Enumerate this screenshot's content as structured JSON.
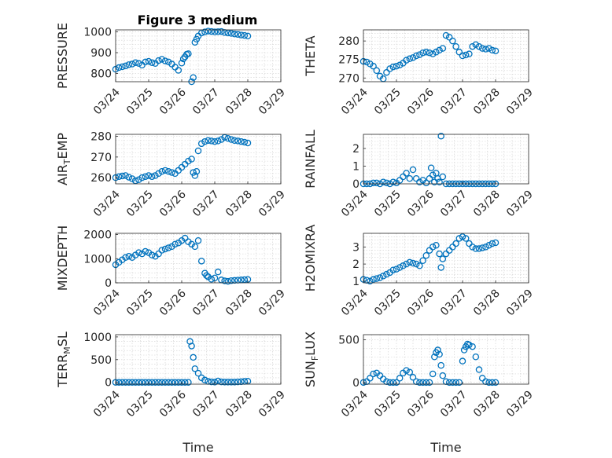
{
  "figure": {
    "title": "Figure 3 medium"
  },
  "chart_data": [
    {
      "type": "scatter",
      "ylabel": "PRESSURE",
      "ylim": [
        760,
        1010
      ],
      "yticks": [
        800,
        900,
        1000
      ],
      "xlim": [
        0,
        5
      ],
      "xticks": [
        0,
        1,
        2,
        3,
        4,
        5
      ],
      "xticklabels": [
        "03/24",
        "03/25",
        "03/26",
        "03/27",
        "03/28",
        "03/29"
      ],
      "x": [
        0,
        0.1,
        0.2,
        0.3,
        0.4,
        0.5,
        0.6,
        0.7,
        0.8,
        0.9,
        1.0,
        1.1,
        1.2,
        1.3,
        1.4,
        1.5,
        1.6,
        1.7,
        1.8,
        1.9,
        2.0,
        2.05,
        2.1,
        2.15,
        2.2,
        2.3,
        2.35,
        2.4,
        2.45,
        2.5,
        2.6,
        2.7,
        2.8,
        2.9,
        3.0,
        3.1,
        3.2,
        3.3,
        3.4,
        3.5,
        3.6,
        3.7,
        3.8,
        3.9,
        4.0
      ],
      "y": [
        820,
        828,
        832,
        836,
        842,
        845,
        852,
        848,
        840,
        855,
        858,
        852,
        848,
        862,
        868,
        860,
        855,
        845,
        830,
        815,
        850,
        870,
        880,
        892,
        895,
        760,
        780,
        950,
        965,
        980,
        995,
        1000,
        1004,
        1002,
        1000,
        1001,
        1002,
        997,
        995,
        993,
        990,
        988,
        985,
        983,
        980
      ]
    },
    {
      "type": "scatter",
      "ylabel": "THETA",
      "ylim": [
        269,
        283
      ],
      "yticks": [
        270,
        275,
        280
      ],
      "xlim": [
        0,
        5
      ],
      "xticks": [
        0,
        1,
        2,
        3,
        4,
        5
      ],
      "xticklabels": [
        "03/24",
        "03/25",
        "03/26",
        "03/27",
        "03/28",
        "03/29"
      ],
      "x": [
        0,
        0.1,
        0.2,
        0.3,
        0.4,
        0.5,
        0.6,
        0.7,
        0.8,
        0.9,
        1.0,
        1.1,
        1.2,
        1.3,
        1.4,
        1.5,
        1.6,
        1.7,
        1.8,
        1.9,
        2.0,
        2.1,
        2.2,
        2.3,
        2.4,
        2.5,
        2.6,
        2.7,
        2.8,
        2.9,
        3.0,
        3.1,
        3.2,
        3.3,
        3.4,
        3.5,
        3.6,
        3.7,
        3.8,
        3.9,
        4.0
      ],
      "y": [
        274.5,
        274.3,
        273.8,
        273.2,
        272.0,
        270.5,
        269.8,
        271.5,
        272.5,
        273.0,
        273.2,
        273.5,
        274.0,
        274.8,
        275.2,
        275.5,
        276.0,
        276.3,
        276.8,
        277.0,
        276.8,
        276.5,
        277.0,
        277.5,
        278.0,
        281.5,
        281.0,
        280.0,
        278.5,
        277.0,
        276.0,
        276.2,
        276.5,
        278.5,
        279.0,
        278.5,
        278.0,
        277.8,
        278.0,
        277.5,
        277.3
      ]
    },
    {
      "type": "scatter",
      "ylabel": "AIR_TEMP",
      "ylim": [
        257,
        281
      ],
      "yticks": [
        260,
        270,
        280
      ],
      "xlim": [
        0,
        5
      ],
      "xticks": [
        0,
        1,
        2,
        3,
        4,
        5
      ],
      "xticklabels": [
        "03/24",
        "03/25",
        "03/26",
        "03/27",
        "03/28",
        "03/29"
      ],
      "x": [
        0,
        0.1,
        0.2,
        0.3,
        0.4,
        0.5,
        0.6,
        0.7,
        0.8,
        0.9,
        1.0,
        1.1,
        1.2,
        1.3,
        1.4,
        1.5,
        1.6,
        1.7,
        1.8,
        1.9,
        2.0,
        2.1,
        2.2,
        2.3,
        2.35,
        2.4,
        2.45,
        2.5,
        2.6,
        2.7,
        2.8,
        2.9,
        3.0,
        3.1,
        3.2,
        3.3,
        3.4,
        3.5,
        3.6,
        3.7,
        3.8,
        3.9,
        4.0
      ],
      "y": [
        260.0,
        260.5,
        260.8,
        261.0,
        260.2,
        259.5,
        258.5,
        259.0,
        260.0,
        260.5,
        261.0,
        260.5,
        261.0,
        262.0,
        263.0,
        263.5,
        263.0,
        262.5,
        262.0,
        263.5,
        265.0,
        266.5,
        268.0,
        269.0,
        262.5,
        261.0,
        263.0,
        273.0,
        276.5,
        277.5,
        278.0,
        277.8,
        277.5,
        277.8,
        278.5,
        279.5,
        279.0,
        278.5,
        278.0,
        277.8,
        277.5,
        277.2,
        276.8
      ]
    },
    {
      "type": "scatter",
      "ylabel": "RAINFALL",
      "ylim": [
        0,
        2.8
      ],
      "yticks": [
        0,
        1,
        2
      ],
      "xlim": [
        0,
        5
      ],
      "xticks": [
        0,
        1,
        2,
        3,
        4,
        5
      ],
      "xticklabels": [
        "03/24",
        "03/25",
        "03/26",
        "03/27",
        "03/28",
        "03/29"
      ],
      "x": [
        0,
        0.1,
        0.2,
        0.3,
        0.4,
        0.5,
        0.6,
        0.7,
        0.8,
        0.9,
        1.0,
        1.1,
        1.2,
        1.3,
        1.4,
        1.5,
        1.6,
        1.7,
        1.8,
        1.9,
        2.0,
        2.05,
        2.1,
        2.15,
        2.2,
        2.25,
        2.3,
        2.35,
        2.4,
        2.5,
        2.6,
        2.7,
        2.8,
        2.9,
        3.0,
        3.1,
        3.2,
        3.3,
        3.4,
        3.5,
        3.6,
        3.7,
        3.8,
        3.9,
        4.0
      ],
      "y": [
        0,
        0,
        0,
        0.05,
        0.05,
        0,
        0.1,
        0.05,
        0,
        0.1,
        0.05,
        0.2,
        0.4,
        0.6,
        0.3,
        0.8,
        0.3,
        0.1,
        0.2,
        0.05,
        0.3,
        0.9,
        0.5,
        0.1,
        0.6,
        0.3,
        0.1,
        2.7,
        0.4,
        0,
        0,
        0,
        0,
        0,
        0,
        0,
        0,
        0,
        0,
        0,
        0,
        0,
        0,
        0,
        0
      ]
    },
    {
      "type": "scatter",
      "ylabel": "MIXDEPTH",
      "ylim": [
        0,
        2050
      ],
      "yticks": [
        0,
        1000,
        2000
      ],
      "xlim": [
        0,
        5
      ],
      "xticks": [
        0,
        1,
        2,
        3,
        4,
        5
      ],
      "xticklabels": [
        "03/24",
        "03/25",
        "03/26",
        "03/27",
        "03/28",
        "03/29"
      ],
      "x": [
        0,
        0.1,
        0.2,
        0.3,
        0.4,
        0.5,
        0.6,
        0.7,
        0.8,
        0.9,
        1.0,
        1.1,
        1.2,
        1.3,
        1.4,
        1.5,
        1.6,
        1.7,
        1.8,
        1.9,
        2.0,
        2.1,
        2.2,
        2.3,
        2.4,
        2.5,
        2.6,
        2.7,
        2.75,
        2.8,
        2.9,
        3.0,
        3.1,
        3.2,
        3.3,
        3.4,
        3.5,
        3.6,
        3.7,
        3.8,
        3.9,
        4.0
      ],
      "y": [
        750,
        850,
        950,
        1050,
        1100,
        1050,
        1150,
        1250,
        1200,
        1300,
        1250,
        1150,
        1100,
        1200,
        1350,
        1400,
        1450,
        1500,
        1600,
        1650,
        1750,
        1850,
        1700,
        1600,
        1500,
        1750,
        900,
        400,
        300,
        250,
        150,
        200,
        450,
        120,
        80,
        60,
        90,
        100,
        110,
        120,
        130,
        140
      ]
    },
    {
      "type": "scatter",
      "ylabel": "H2OMIXRA",
      "ylim": [
        0.9,
        3.8
      ],
      "yticks": [
        1,
        2,
        3
      ],
      "xlim": [
        0,
        5
      ],
      "xticks": [
        0,
        1,
        2,
        3,
        4,
        5
      ],
      "xticklabels": [
        "03/24",
        "03/25",
        "03/26",
        "03/27",
        "03/28",
        "03/29"
      ],
      "x": [
        0,
        0.1,
        0.2,
        0.3,
        0.4,
        0.5,
        0.6,
        0.7,
        0.8,
        0.9,
        1.0,
        1.1,
        1.2,
        1.3,
        1.4,
        1.5,
        1.6,
        1.7,
        1.8,
        1.9,
        2.0,
        2.1,
        2.2,
        2.3,
        2.35,
        2.4,
        2.5,
        2.6,
        2.7,
        2.8,
        2.9,
        3.0,
        3.1,
        3.2,
        3.3,
        3.4,
        3.5,
        3.6,
        3.7,
        3.8,
        3.9,
        4.0
      ],
      "y": [
        1.1,
        1.05,
        1.0,
        1.1,
        1.15,
        1.2,
        1.3,
        1.4,
        1.5,
        1.65,
        1.7,
        1.8,
        1.9,
        2.0,
        2.1,
        2.05,
        2.0,
        1.9,
        2.2,
        2.5,
        2.8,
        3.0,
        3.1,
        2.6,
        1.8,
        2.3,
        2.6,
        2.8,
        3.0,
        3.2,
        3.5,
        3.6,
        3.5,
        3.2,
        3.0,
        2.9,
        2.9,
        2.95,
        3.0,
        3.1,
        3.2,
        3.25
      ]
    },
    {
      "type": "scatter",
      "ylabel": "TERR_MSL",
      "ylim": [
        -40,
        1050
      ],
      "yticks": [
        0,
        500,
        1000
      ],
      "xlim": [
        0,
        5
      ],
      "xticks": [
        0,
        1,
        2,
        3,
        4,
        5
      ],
      "xticklabels": [
        "03/24",
        "03/25",
        "03/26",
        "03/27",
        "03/28",
        "03/29"
      ],
      "x": [
        0,
        0.1,
        0.2,
        0.3,
        0.4,
        0.5,
        0.6,
        0.7,
        0.8,
        0.9,
        1.0,
        1.1,
        1.2,
        1.3,
        1.4,
        1.5,
        1.6,
        1.7,
        1.8,
        1.9,
        2.0,
        2.1,
        2.2,
        2.25,
        2.3,
        2.35,
        2.4,
        2.5,
        2.6,
        2.7,
        2.8,
        2.9,
        3.0,
        3.1,
        3.2,
        3.3,
        3.4,
        3.5,
        3.6,
        3.7,
        3.8,
        3.9,
        4.0
      ],
      "y": [
        0,
        0,
        0,
        0,
        0,
        0,
        0,
        0,
        0,
        0,
        0,
        0,
        0,
        0,
        0,
        0,
        0,
        0,
        0,
        0,
        0,
        0,
        0,
        900,
        800,
        550,
        300,
        200,
        100,
        50,
        20,
        10,
        5,
        30,
        10,
        5,
        5,
        5,
        5,
        10,
        15,
        20,
        25
      ]
    },
    {
      "type": "scatter",
      "ylabel": "SUN_FLUX",
      "ylim": [
        -20,
        560
      ],
      "yticks": [
        0,
        500
      ],
      "xlim": [
        0,
        5
      ],
      "xticks": [
        0,
        1,
        2,
        3,
        4,
        5
      ],
      "xticklabels": [
        "03/24",
        "03/25",
        "03/26",
        "03/27",
        "03/28",
        "03/29"
      ],
      "x": [
        0,
        0.1,
        0.2,
        0.3,
        0.4,
        0.5,
        0.6,
        0.7,
        0.8,
        0.9,
        1.0,
        1.1,
        1.2,
        1.3,
        1.4,
        1.5,
        1.6,
        1.7,
        1.8,
        1.9,
        2.0,
        2.1,
        2.15,
        2.2,
        2.25,
        2.3,
        2.35,
        2.4,
        2.5,
        2.6,
        2.7,
        2.8,
        2.9,
        3.0,
        3.05,
        3.1,
        3.15,
        3.2,
        3.3,
        3.4,
        3.5,
        3.6,
        3.7,
        3.8,
        3.9,
        4.0
      ],
      "y": [
        0,
        10,
        50,
        100,
        110,
        80,
        40,
        10,
        0,
        0,
        0,
        50,
        110,
        140,
        120,
        60,
        10,
        0,
        0,
        0,
        0,
        100,
        300,
        350,
        380,
        330,
        200,
        80,
        10,
        0,
        0,
        0,
        0,
        250,
        380,
        420,
        450,
        440,
        420,
        300,
        150,
        50,
        10,
        0,
        0,
        0
      ]
    }
  ]
}
